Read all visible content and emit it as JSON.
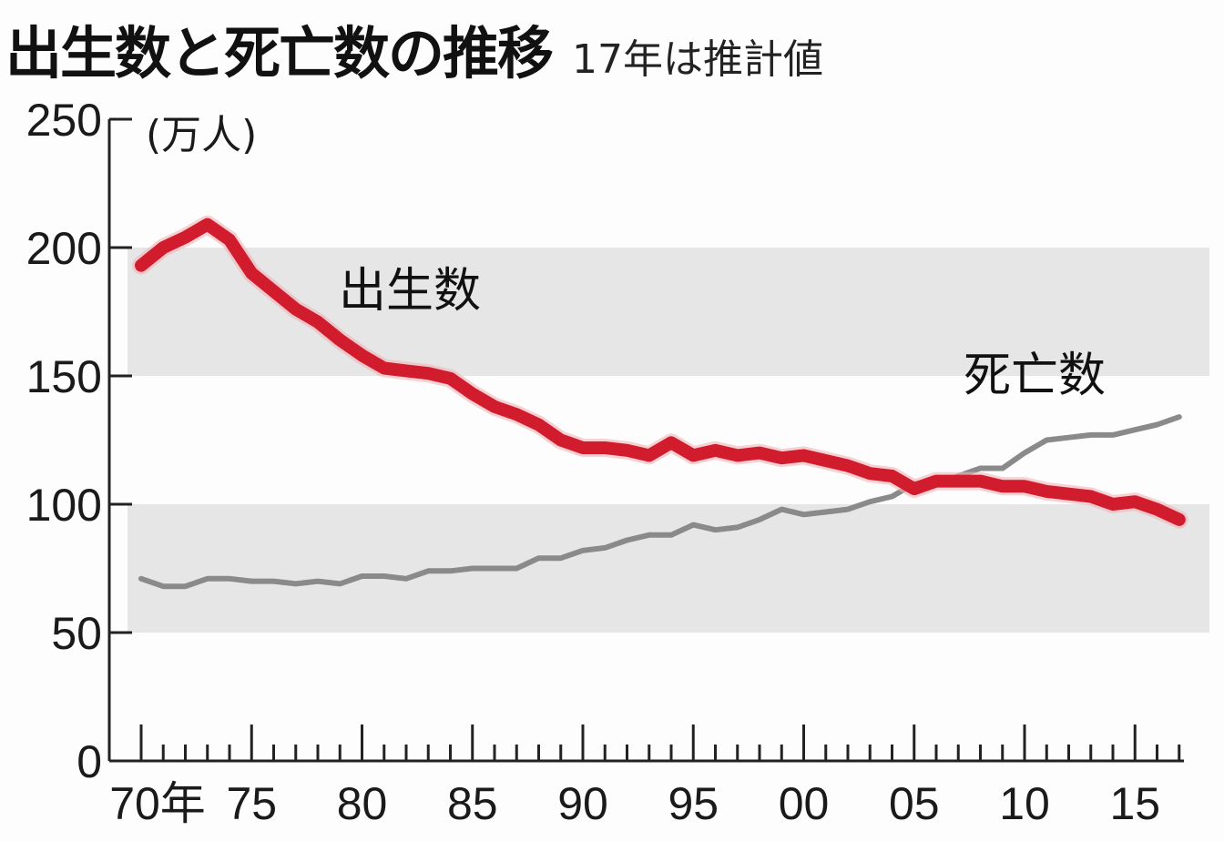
{
  "title": {
    "main": "出生数と死亡数の推移",
    "sub": "17年は推計値"
  },
  "colors": {
    "births": "#d01c2c",
    "deaths": "#8a8a8a",
    "band": "#e6e6e6",
    "axis": "#222222"
  },
  "chart_data": {
    "type": "line",
    "title": "出生数と死亡数の推移",
    "subtitle": "17年は推計値",
    "xlabel": "年",
    "ylabel": "(万人)",
    "ylim": [
      0,
      250
    ],
    "xlim": [
      1970,
      2017
    ],
    "yticks": [
      0,
      50,
      100,
      150,
      200,
      250
    ],
    "xtick_labels": [
      "70年",
      "75",
      "80",
      "85",
      "90",
      "95",
      "00",
      "05",
      "10",
      "15"
    ],
    "grid": "alternating horizontal bands (50-100, 150-200)",
    "legend": "inline labels",
    "x": [
      1970,
      1971,
      1972,
      1973,
      1974,
      1975,
      1976,
      1977,
      1978,
      1979,
      1980,
      1981,
      1982,
      1983,
      1984,
      1985,
      1986,
      1987,
      1988,
      1989,
      1990,
      1991,
      1992,
      1993,
      1994,
      1995,
      1996,
      1997,
      1998,
      1999,
      2000,
      2001,
      2002,
      2003,
      2004,
      2005,
      2006,
      2007,
      2008,
      2009,
      2010,
      2011,
      2012,
      2013,
      2014,
      2015,
      2016,
      2017
    ],
    "series": [
      {
        "name": "出生数",
        "values": [
          193,
          200,
          204,
          209,
          203,
          190,
          183,
          176,
          171,
          164,
          158,
          153,
          152,
          151,
          149,
          143,
          138,
          135,
          131,
          125,
          122,
          122,
          121,
          119,
          124,
          119,
          121,
          119,
          120,
          118,
          119,
          117,
          115,
          112,
          111,
          106,
          109,
          109,
          109,
          107,
          107,
          105,
          104,
          103,
          100,
          101,
          98,
          94
        ]
      },
      {
        "name": "死亡数",
        "values": [
          71,
          68,
          68,
          71,
          71,
          70,
          70,
          69,
          70,
          69,
          72,
          72,
          71,
          74,
          74,
          75,
          75,
          75,
          79,
          79,
          82,
          83,
          86,
          88,
          88,
          92,
          90,
          91,
          94,
          98,
          96,
          97,
          98,
          101,
          103,
          108,
          108,
          111,
          114,
          114,
          120,
          125,
          126,
          127,
          127,
          129,
          131,
          134
        ]
      }
    ]
  },
  "axis": {
    "y_unit": "(万人)",
    "y_labels": [
      "250",
      "200",
      "150",
      "100",
      "50",
      "0"
    ],
    "x_labels": [
      "70年",
      "75",
      "80",
      "85",
      "90",
      "95",
      "00",
      "05",
      "10",
      "15"
    ]
  },
  "labels": {
    "births": "出生数",
    "deaths": "死亡数"
  }
}
